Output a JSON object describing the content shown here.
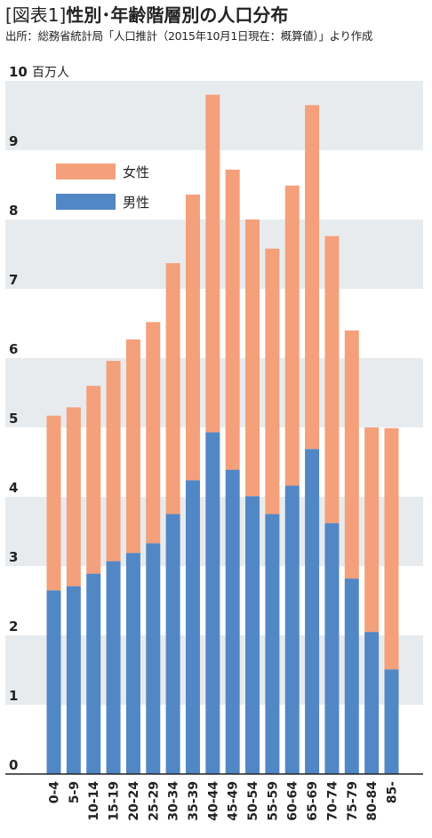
{
  "title": {
    "label": "[図表1]",
    "text": "性別･年齢階層別の人口分布"
  },
  "source": "出所：総務省統計局「人口推計（2015年10月1日現在：概算値）」より作成",
  "colors": {
    "female": "#f4a07a",
    "male": "#5287c6",
    "band": "#e8ebee",
    "axis": "#222222"
  },
  "chart_data": {
    "type": "bar",
    "stacked": true,
    "title": "性別･年齢階層別の人口分布",
    "y_unit": "百万人",
    "ylim": [
      0,
      10
    ],
    "yticks": [
      0,
      1,
      2,
      3,
      4,
      5,
      6,
      7,
      8,
      9,
      10
    ],
    "legend": {
      "placement": "top-left",
      "order": [
        "女性",
        "男性"
      ]
    },
    "categories": [
      "0-4",
      "5-9",
      "10-14",
      "15-19",
      "20-24",
      "25-29",
      "30-34",
      "35-39",
      "40-44",
      "45-49",
      "50-54",
      "55-59",
      "60-64",
      "65-69",
      "70-74",
      "75-79",
      "80-84",
      "85-"
    ],
    "series": [
      {
        "name": "男性",
        "values": [
          2.65,
          2.71,
          2.89,
          3.07,
          3.19,
          3.33,
          3.75,
          4.24,
          4.93,
          4.39,
          4.01,
          3.75,
          4.16,
          4.69,
          3.62,
          2.82,
          2.05,
          1.51
        ]
      },
      {
        "name": "女性",
        "values": [
          2.52,
          2.58,
          2.71,
          2.89,
          3.08,
          3.19,
          3.62,
          4.12,
          4.87,
          4.33,
          3.99,
          3.83,
          4.33,
          4.96,
          4.14,
          3.58,
          2.95,
          3.48
        ]
      }
    ]
  }
}
